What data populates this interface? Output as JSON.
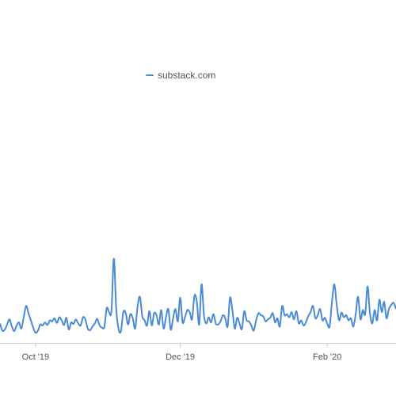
{
  "chart_data": {
    "type": "line",
    "title": "",
    "xlabel": "",
    "ylabel": "",
    "series": [
      {
        "name": "substack.com",
        "color": "#4a8bd6",
        "x": [
          "2019-09-16",
          "2019-09-17",
          "2019-09-18",
          "2019-09-19",
          "2019-09-20",
          "2019-09-21",
          "2019-09-22",
          "2019-09-23",
          "2019-09-24",
          "2019-09-25",
          "2019-09-26",
          "2019-09-27",
          "2019-09-28",
          "2019-09-29",
          "2019-09-30",
          "2019-10-01",
          "2019-10-02",
          "2019-10-03",
          "2019-10-04",
          "2019-10-05",
          "2019-10-06",
          "2019-10-07",
          "2019-10-08",
          "2019-10-09",
          "2019-10-10",
          "2019-10-11",
          "2019-10-12",
          "2019-10-13",
          "2019-10-14",
          "2019-10-15",
          "2019-10-16",
          "2019-10-17",
          "2019-10-18",
          "2019-10-19",
          "2019-10-20",
          "2019-10-21",
          "2019-10-22",
          "2019-10-23",
          "2019-10-24",
          "2019-10-25",
          "2019-10-26",
          "2019-10-27",
          "2019-10-28",
          "2019-10-29",
          "2019-10-30",
          "2019-10-31",
          "2019-11-01",
          "2019-11-02",
          "2019-11-03",
          "2019-11-04",
          "2019-11-05",
          "2019-11-06",
          "2019-11-07",
          "2019-11-08",
          "2019-11-09",
          "2019-11-10",
          "2019-11-11",
          "2019-11-12",
          "2019-11-13",
          "2019-11-14",
          "2019-11-15",
          "2019-11-16",
          "2019-11-17",
          "2019-11-18",
          "2019-11-19",
          "2019-11-20",
          "2019-11-21",
          "2019-11-22",
          "2019-11-23",
          "2019-11-24",
          "2019-11-25",
          "2019-11-26",
          "2019-11-27",
          "2019-11-28",
          "2019-11-29",
          "2019-11-30",
          "2019-12-01",
          "2019-12-02",
          "2019-12-03",
          "2019-12-04",
          "2019-12-05",
          "2019-12-06",
          "2019-12-07",
          "2019-12-08",
          "2019-12-09",
          "2019-12-10",
          "2019-12-11",
          "2019-12-12",
          "2019-12-13",
          "2019-12-14",
          "2019-12-15",
          "2019-12-16",
          "2019-12-17",
          "2019-12-18",
          "2019-12-19",
          "2019-12-20",
          "2019-12-21",
          "2019-12-22",
          "2019-12-23",
          "2019-12-24",
          "2019-12-25",
          "2019-12-26",
          "2019-12-27",
          "2019-12-28",
          "2019-12-29",
          "2019-12-30",
          "2019-12-31",
          "2020-01-01",
          "2020-01-02",
          "2020-01-03",
          "2020-01-04",
          "2020-01-05",
          "2020-01-06",
          "2020-01-07",
          "2020-01-08",
          "2020-01-09",
          "2020-01-10",
          "2020-01-11",
          "2020-01-12",
          "2020-01-13",
          "2020-01-14",
          "2020-01-15",
          "2020-01-16",
          "2020-01-17",
          "2020-01-18",
          "2020-01-19",
          "2020-01-20",
          "2020-01-21",
          "2020-01-22",
          "2020-01-23",
          "2020-01-24",
          "2020-01-25",
          "2020-01-26",
          "2020-01-27",
          "2020-01-28",
          "2020-01-29",
          "2020-01-30",
          "2020-01-31",
          "2020-02-01",
          "2020-02-02",
          "2020-02-03",
          "2020-02-04",
          "2020-02-05",
          "2020-02-06",
          "2020-02-07",
          "2020-02-08",
          "2020-02-09",
          "2020-02-10",
          "2020-02-11",
          "2020-02-12",
          "2020-02-13",
          "2020-02-14",
          "2020-02-15",
          "2020-02-16",
          "2020-02-17",
          "2020-02-18",
          "2020-02-19",
          "2020-02-20",
          "2020-02-21",
          "2020-02-22",
          "2020-02-23",
          "2020-02-24",
          "2020-02-25",
          "2020-02-26",
          "2020-02-27",
          "2020-02-28",
          "2020-02-29",
          "2020-03-01"
        ],
        "values": [
          24,
          10,
          12,
          22,
          32,
          18,
          9,
          20,
          26,
          14,
          36,
          58,
          44,
          30,
          16,
          6,
          10,
          22,
          20,
          26,
          21,
          30,
          28,
          34,
          25,
          36,
          30,
          21,
          35,
          12,
          26,
          23,
          32,
          24,
          20,
          36,
          32,
          14,
          11,
          18,
          24,
          33,
          20,
          16,
          17,
          54,
          46,
          48,
          150,
          54,
          13,
          9,
          46,
          44,
          22,
          42,
          34,
          14,
          56,
          76,
          38,
          30,
          20,
          48,
          20,
          44,
          40,
          22,
          50,
          14,
          36,
          52,
          12,
          34,
          52,
          28,
          74,
          26,
          36,
          50,
          46,
          32,
          78,
          66,
          22,
          100,
          40,
          24,
          36,
          26,
          42,
          24,
          22,
          28,
          40,
          34,
          18,
          74,
          50,
          14,
          35,
          24,
          13,
          48,
          30,
          28,
          20,
          10,
          30,
          44,
          40,
          38,
          28,
          32,
          35,
          44,
          26,
          34,
          18,
          58,
          40,
          42,
          36,
          46,
          32,
          48,
          24,
          30,
          20,
          26,
          38,
          46,
          58,
          34,
          40,
          52,
          30,
          35,
          24,
          18,
          66,
          100,
          60,
          30,
          45,
          36,
          40,
          30,
          34,
          18,
          42,
          76,
          32,
          50,
          42,
          96,
          44,
          24,
          50,
          30,
          70,
          46,
          66,
          34,
          52,
          60,
          64,
          52
        ],
        "ylim": [
          0,
          250
        ]
      }
    ],
    "x_ticks": [
      "Oct '19",
      "Dec '19",
      "Feb '20"
    ],
    "x_tick_dates": [
      "2019-10-01",
      "2019-12-01",
      "2020-02-01"
    ],
    "grid": false,
    "legend_position": "top-center",
    "colors": {
      "axis": "#cccccc",
      "tick_label": "#555555",
      "line": "#4a8bd6"
    }
  }
}
